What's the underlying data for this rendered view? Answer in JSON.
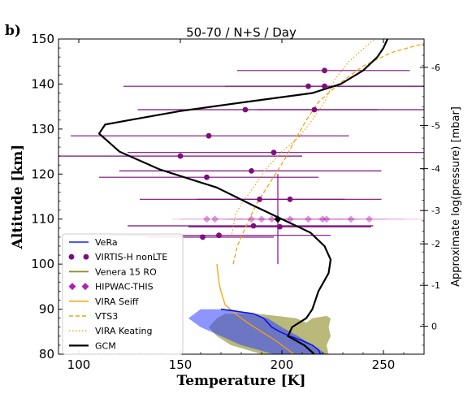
{
  "panel_label": "b)",
  "chart_data": {
    "type": "line",
    "title": "50-70 / N+S / Day",
    "xlabel": "Temperature [K]",
    "ylabel": "Altitude [km]",
    "y2label": "Approximate log(pressure) [mbar]",
    "xlim": [
      90,
      270
    ],
    "ylim": [
      80,
      150
    ],
    "xticks": [
      "100",
      "150",
      "200",
      "250"
    ],
    "yticks": [
      "80",
      "90",
      "100",
      "110",
      "120",
      "130",
      "140",
      "150"
    ],
    "y2ticks": [
      {
        "label": "-6",
        "alt": 143.7
      },
      {
        "label": "-5",
        "alt": 130.8
      },
      {
        "label": "-4",
        "alt": 121.2
      },
      {
        "label": "-3",
        "alt": 111.9
      },
      {
        "label": "-2",
        "alt": 104.5
      },
      {
        "label": "-1",
        "alt": 95.3
      },
      {
        "label": "0",
        "alt": 86.2
      }
    ],
    "legend_position": "lower-left",
    "series": [
      {
        "name": "VeRa",
        "color": "#2f3fff",
        "style": "solid-band",
        "points": [
          [
            170,
            90
          ],
          [
            186,
            89
          ],
          [
            191,
            88
          ],
          [
            193,
            87
          ],
          [
            195,
            86
          ],
          [
            199,
            85
          ],
          [
            204,
            84
          ],
          [
            210,
            83
          ],
          [
            215,
            82
          ],
          [
            218,
            81
          ],
          [
            219,
            80
          ]
        ],
        "band": [
          [
            160,
            90
          ],
          [
            175,
            90
          ],
          [
            193,
            88
          ],
          [
            200,
            86
          ],
          [
            208,
            84
          ],
          [
            215,
            82
          ],
          [
            222,
            80
          ],
          [
            196,
            80
          ],
          [
            180,
            82
          ],
          [
            170,
            84
          ],
          [
            160,
            86
          ],
          [
            154,
            88
          ]
        ]
      },
      {
        "name": "VIRTIS-H nonLTE",
        "color": "#7d0e7d",
        "style": "points",
        "points": [
          {
            "x": 221,
            "y": 143,
            "xerr": [
              178,
              263
            ]
          },
          {
            "x": 213,
            "y": 139.5,
            "xerr": [
              122,
              270
            ]
          },
          {
            "x": 221,
            "y": 139.5,
            "xerr": [
              172,
              270
            ]
          },
          {
            "x": 182,
            "y": 134.3,
            "xerr": [
              129,
              247
            ]
          },
          {
            "x": 216,
            "y": 134.3,
            "xerr": [
              188,
              270
            ]
          },
          {
            "x": 164,
            "y": 128.5,
            "xerr": [
              96,
              233
            ]
          },
          {
            "x": 196,
            "y": 124.8,
            "xerr": [
              124,
              270
            ]
          },
          {
            "x": 150,
            "y": 124,
            "xerr": [
              90,
              210
            ]
          },
          {
            "x": 185,
            "y": 120.7,
            "xerr": [
              120,
              249
            ]
          },
          {
            "x": 163,
            "y": 119.3,
            "xerr": [
              110,
              218
            ]
          },
          {
            "x": 204,
            "y": 114.4,
            "xerr": [
              158,
              249
            ]
          },
          {
            "x": 189,
            "y": 114.4,
            "xerr": [
              130,
              231
            ]
          },
          {
            "x": 186,
            "y": 108.5,
            "xerr": [
              124,
              245
            ]
          },
          {
            "x": 199,
            "y": 108.3,
            "xerr": [
              154,
              244
            ]
          },
          {
            "x": 169,
            "y": 106.4,
            "xerr": [
              115,
              224
            ]
          },
          {
            "x": 161,
            "y": 106,
            "xerr": [
              134,
              196
            ]
          }
        ]
      },
      {
        "name": "Venera 15 RO",
        "color": "#8a8b21",
        "style": "band",
        "band": [
          [
            172,
            89
          ],
          [
            188,
            89
          ],
          [
            207,
            88
          ],
          [
            212,
            87
          ],
          [
            215,
            88
          ],
          [
            222,
            88.5
          ],
          [
            224,
            88
          ],
          [
            223,
            86
          ],
          [
            224,
            84
          ],
          [
            222,
            82
          ],
          [
            223,
            80
          ],
          [
            190,
            80
          ],
          [
            175,
            82
          ],
          [
            168,
            84
          ],
          [
            164,
            86
          ],
          [
            168,
            88
          ]
        ]
      },
      {
        "name": "HIPWAC-THIS",
        "color": "#b020b0",
        "style": "diamonds",
        "points": [
          {
            "x": 163,
            "y": 110,
            "xerr": [
              146,
              181
            ]
          },
          {
            "x": 167,
            "y": 110,
            "xerr": [
              150,
              184
            ]
          },
          {
            "x": 185,
            "y": 110,
            "xerr": [
              168,
              202
            ]
          },
          {
            "x": 190,
            "y": 110,
            "xerr": [
              173,
              207
            ]
          },
          {
            "x": 195,
            "y": 110,
            "xerr": [
              178,
              212
            ]
          },
          {
            "x": 204,
            "y": 110,
            "xerr": [
              187,
              221
            ]
          },
          {
            "x": 213,
            "y": 110,
            "xerr": [
              196,
              230
            ]
          },
          {
            "x": 220,
            "y": 110,
            "xerr": [
              203,
              237
            ]
          },
          {
            "x": 222,
            "y": 110,
            "xerr": [
              205,
              239
            ]
          },
          {
            "x": 234,
            "y": 110,
            "xerr": [
              217,
              251
            ]
          },
          {
            "x": 243,
            "y": 110,
            "xerr": [
              226,
              260
            ]
          }
        ]
      },
      {
        "name": "VIRA Seiff",
        "color": "#f5a20a",
        "style": "solid",
        "points": [
          [
            168,
            100
          ],
          [
            169,
            96
          ],
          [
            170,
            94
          ],
          [
            172,
            91
          ],
          [
            177,
            89
          ],
          [
            183,
            87
          ],
          [
            190,
            85
          ],
          [
            197,
            83
          ],
          [
            203,
            81
          ],
          [
            206,
            80
          ]
        ]
      },
      {
        "name": "VTS3",
        "color": "#f5a20a",
        "style": "dashed",
        "points": [
          [
            176,
            100
          ],
          [
            178,
            104
          ],
          [
            182,
            108
          ],
          [
            187,
            113
          ],
          [
            194,
            118
          ],
          [
            201,
            123
          ],
          [
            207,
            128
          ],
          [
            212,
            132
          ],
          [
            218,
            136
          ],
          [
            228,
            140
          ],
          [
            240,
            144
          ],
          [
            254,
            147
          ],
          [
            270,
            149
          ]
        ]
      },
      {
        "name": "VIRA Keating",
        "color": "#f5a20a",
        "style": "dotted",
        "points": [
          [
            175,
            106
          ],
          [
            176,
            108
          ],
          [
            177,
            111
          ],
          [
            181,
            114
          ],
          [
            186,
            117
          ],
          [
            192,
            121
          ],
          [
            200,
            125
          ],
          [
            208,
            128
          ],
          [
            215,
            132
          ],
          [
            221,
            136
          ],
          [
            226,
            141
          ],
          [
            233,
            145
          ],
          [
            243,
            149
          ],
          [
            246,
            150
          ]
        ]
      },
      {
        "name": "GCM",
        "color": "#000000",
        "style": "solid",
        "points": [
          [
            216,
            80
          ],
          [
            211,
            82
          ],
          [
            203,
            84
          ],
          [
            205,
            86
          ],
          [
            212,
            88
          ],
          [
            215,
            90
          ],
          [
            218,
            94
          ],
          [
            223,
            98
          ],
          [
            224,
            101
          ],
          [
            221,
            104
          ],
          [
            214,
            107
          ],
          [
            200,
            110
          ],
          [
            186,
            113
          ],
          [
            168,
            117
          ],
          [
            140,
            121
          ],
          [
            120,
            125
          ],
          [
            110,
            129
          ],
          [
            113,
            131
          ],
          [
            125,
            132
          ],
          [
            150,
            134
          ],
          [
            182,
            136
          ],
          [
            215,
            138
          ],
          [
            229,
            140
          ],
          [
            240,
            143
          ],
          [
            247,
            146
          ],
          [
            250,
            148
          ],
          [
            252,
            150
          ]
        ]
      }
    ],
    "annotations": [
      {
        "name": "black-diamond",
        "x": 198,
        "y": 110,
        "xerr": [
          182,
          270
        ],
        "yerr": [
          100,
          120
        ]
      }
    ]
  }
}
